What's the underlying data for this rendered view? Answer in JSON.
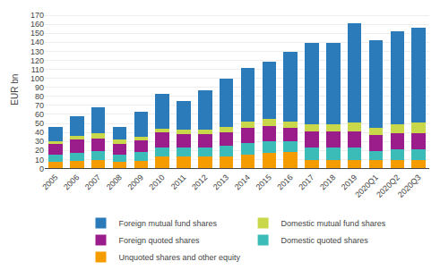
{
  "chart_data": {
    "type": "bar",
    "stacked": true,
    "categories": [
      "2005",
      "2006",
      "2007",
      "2008",
      "2009",
      "2010",
      "2011",
      "2012",
      "2013",
      "2014",
      "2015",
      "2016",
      "2017",
      "2018",
      "2019",
      "2020Q1",
      "2020Q2",
      "2020Q3"
    ],
    "series": [
      {
        "name": "Unquoted shares and other equity",
        "color": "#f59c00",
        "values": [
          7,
          8,
          9,
          7,
          8,
          13,
          13,
          13,
          13,
          15,
          17,
          18,
          9,
          9,
          9,
          9,
          9,
          9
        ]
      },
      {
        "name": "Domestic quoted shares",
        "color": "#3bbcb8",
        "values": [
          8,
          9,
          10,
          8,
          10,
          10,
          10,
          10,
          12,
          13,
          13,
          12,
          14,
          14,
          14,
          10,
          12,
          12
        ]
      },
      {
        "name": "Foreign quoted shares",
        "color": "#9b1d8c",
        "values": [
          12,
          15,
          14,
          12,
          13,
          17,
          15,
          15,
          15,
          17,
          17,
          15,
          18,
          18,
          18,
          18,
          18,
          18
        ]
      },
      {
        "name": "Domestic mutual fund shares",
        "color": "#c8d84a",
        "values": [
          3,
          4,
          6,
          5,
          4,
          4,
          5,
          5,
          6,
          7,
          8,
          7,
          8,
          8,
          10,
          8,
          10,
          12
        ]
      },
      {
        "name": "Foreign mutual fund shares",
        "color": "#2b7bba",
        "values": [
          16,
          22,
          29,
          14,
          28,
          39,
          32,
          44,
          54,
          60,
          63,
          77,
          90,
          90,
          110,
          97,
          103,
          105
        ]
      }
    ],
    "ylabel": "EUR bn",
    "ylim": [
      0,
      175
    ],
    "yticks": [
      0,
      10,
      20,
      30,
      40,
      50,
      60,
      70,
      80,
      90,
      100,
      110,
      120,
      130,
      140,
      150,
      160,
      170
    ],
    "grid": true,
    "legend": "bottom"
  }
}
